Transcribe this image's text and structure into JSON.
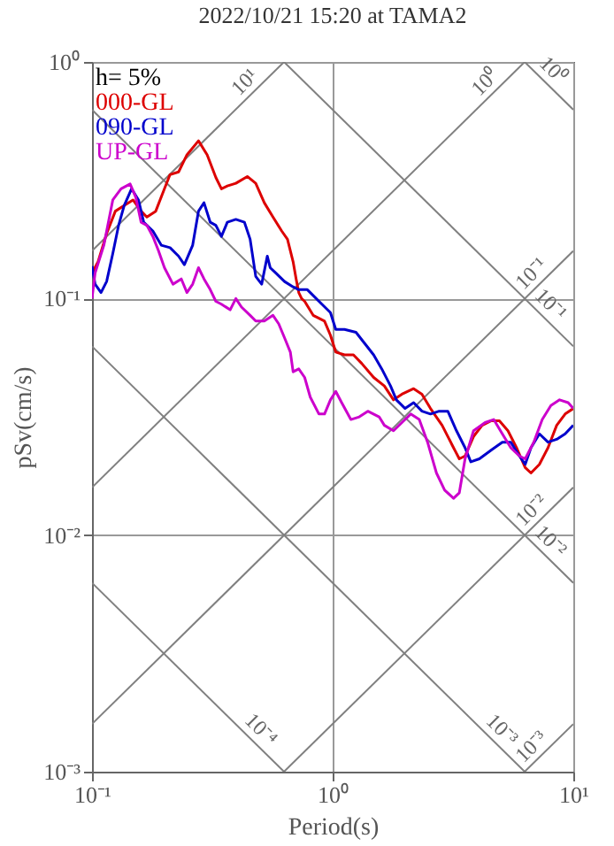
{
  "chart_data": {
    "type": "line",
    "title": "2022/10/21 15:20 at TAMA2",
    "xlabel": "Period(s)",
    "ylabel": "pSv(cm/s)",
    "legend_title": "h= 5%",
    "legend": "top left",
    "log": "xy",
    "grid": true,
    "xlim": [
      0.1,
      10
    ],
    "ylim": [
      0.001,
      1
    ],
    "xticks": [
      {
        "value": 0.1,
        "label": "10⁻¹"
      },
      {
        "value": 1,
        "label": "10⁰"
      },
      {
        "value": 10,
        "label": "10¹"
      }
    ],
    "yticks": [
      {
        "value": 0.001,
        "label": "10⁻³"
      },
      {
        "value": 0.01,
        "label": "10⁻²"
      },
      {
        "value": 0.1,
        "label": "10⁻¹"
      },
      {
        "value": 1,
        "label": "10⁰"
      }
    ],
    "series": [
      {
        "name": "000-GL",
        "color": "#dd0000",
        "x": [
          0.1,
          0.106,
          0.115,
          0.125,
          0.136,
          0.148,
          0.16,
          0.169,
          0.184,
          0.2,
          0.211,
          0.229,
          0.248,
          0.277,
          0.301,
          0.327,
          0.345,
          0.365,
          0.396,
          0.442,
          0.479,
          0.52,
          0.565,
          0.614,
          0.649,
          0.685,
          0.705,
          0.723,
          0.743,
          0.765,
          0.83,
          0.877,
          0.925,
          0.979,
          1.03,
          1.12,
          1.22,
          1.32,
          1.48,
          1.64,
          1.79,
          1.94,
          2.17,
          2.35,
          2.55,
          2.85,
          3.18,
          3.36,
          3.55,
          3.85,
          4.18,
          4.54,
          4.93,
          5.35,
          5.81,
          6.31,
          6.67,
          7.23,
          7.85,
          8.53,
          9.25,
          10
        ],
        "values": [
          0.128,
          0.143,
          0.188,
          0.234,
          0.247,
          0.261,
          0.234,
          0.221,
          0.234,
          0.291,
          0.334,
          0.343,
          0.405,
          0.464,
          0.405,
          0.325,
          0.291,
          0.299,
          0.307,
          0.328,
          0.307,
          0.254,
          0.221,
          0.193,
          0.178,
          0.143,
          0.121,
          0.106,
          0.1,
          0.0973,
          0.0849,
          0.0825,
          0.0803,
          0.07,
          0.0594,
          0.0578,
          0.0578,
          0.0532,
          0.0464,
          0.0427,
          0.0373,
          0.0394,
          0.0416,
          0.0394,
          0.0343,
          0.0291,
          0.0234,
          0.021,
          0.0216,
          0.0261,
          0.0291,
          0.0304,
          0.0304,
          0.0276,
          0.0234,
          0.0193,
          0.0183,
          0.0199,
          0.0234,
          0.0291,
          0.0325,
          0.0343
        ]
      },
      {
        "name": "090-GL",
        "color": "#0000cc",
        "x": [
          0.1,
          0.103,
          0.109,
          0.115,
          0.122,
          0.129,
          0.136,
          0.146,
          0.156,
          0.164,
          0.179,
          0.194,
          0.211,
          0.229,
          0.242,
          0.262,
          0.277,
          0.292,
          0.31,
          0.327,
          0.345,
          0.365,
          0.396,
          0.43,
          0.454,
          0.479,
          0.507,
          0.535,
          0.55,
          0.581,
          0.631,
          0.685,
          0.723,
          0.785,
          0.902,
          0.979,
          1.03,
          1.12,
          1.25,
          1.36,
          1.48,
          1.6,
          1.74,
          1.84,
          2.0,
          2.17,
          2.35,
          2.55,
          2.77,
          3.01,
          3.27,
          3.55,
          3.75,
          4.07,
          4.54,
          5.07,
          5.5,
          5.97,
          6.31,
          6.67,
          7.23,
          7.85,
          8.53,
          9.25,
          10
        ],
        "values": [
          0.137,
          0.115,
          0.106,
          0.118,
          0.155,
          0.204,
          0.247,
          0.291,
          0.261,
          0.21,
          0.193,
          0.168,
          0.164,
          0.151,
          0.139,
          0.168,
          0.234,
          0.254,
          0.21,
          0.204,
          0.183,
          0.21,
          0.216,
          0.21,
          0.178,
          0.124,
          0.115,
          0.151,
          0.135,
          0.128,
          0.118,
          0.112,
          0.109,
          0.109,
          0.0946,
          0.0872,
          0.074,
          0.074,
          0.072,
          0.0645,
          0.0578,
          0.0504,
          0.0427,
          0.0373,
          0.0343,
          0.0363,
          0.0334,
          0.0325,
          0.0334,
          0.0334,
          0.0276,
          0.0234,
          0.0204,
          0.021,
          0.0228,
          0.0247,
          0.0247,
          0.0216,
          0.0199,
          0.0234,
          0.0268,
          0.0247,
          0.0254,
          0.0268,
          0.0291
        ]
      },
      {
        "name": "UP-GL",
        "color": "#cc00cc",
        "x": [
          0.1,
          0.103,
          0.112,
          0.122,
          0.132,
          0.144,
          0.152,
          0.16,
          0.169,
          0.179,
          0.189,
          0.2,
          0.217,
          0.235,
          0.248,
          0.262,
          0.277,
          0.292,
          0.31,
          0.327,
          0.345,
          0.375,
          0.396,
          0.418,
          0.454,
          0.479,
          0.52,
          0.565,
          0.597,
          0.631,
          0.667,
          0.685,
          0.723,
          0.765,
          0.807,
          0.877,
          0.925,
          0.979,
          1.03,
          1.09,
          1.19,
          1.29,
          1.4,
          1.56,
          1.64,
          1.79,
          1.94,
          2.11,
          2.29,
          2.48,
          2.7,
          2.92,
          3.18,
          3.36,
          3.55,
          3.85,
          4.3,
          4.67,
          5.07,
          5.5,
          5.97,
          6.31,
          6.85,
          7.43,
          8.07,
          8.77,
          9.52,
          10
        ],
        "values": [
          0.1,
          0.128,
          0.168,
          0.261,
          0.291,
          0.305,
          0.268,
          0.21,
          0.204,
          0.183,
          0.159,
          0.135,
          0.115,
          0.121,
          0.106,
          0.115,
          0.135,
          0.121,
          0.109,
          0.0973,
          0.0946,
          0.0896,
          0.1,
          0.092,
          0.0849,
          0.0803,
          0.0803,
          0.0849,
          0.0781,
          0.0682,
          0.0594,
          0.049,
          0.0504,
          0.0464,
          0.0383,
          0.0325,
          0.0325,
          0.0373,
          0.0405,
          0.0363,
          0.0308,
          0.0316,
          0.0334,
          0.0316,
          0.0291,
          0.0276,
          0.0299,
          0.0325,
          0.0308,
          0.0247,
          0.0183,
          0.0155,
          0.0143,
          0.0151,
          0.021,
          0.0276,
          0.0299,
          0.0308,
          0.0268,
          0.0234,
          0.0216,
          0.021,
          0.0247,
          0.0308,
          0.0353,
          0.0373,
          0.0363,
          0.0343
        ]
      },
      {
        "color": "#808080",
        "x": [
          0.1,
          0.628
        ],
        "values": [
          0.00628,
          0.001
        ]
      },
      {
        "color": "#808080",
        "x": [
          0.1,
          6.28
        ],
        "values": [
          0.0628,
          0.001
        ]
      },
      {
        "color": "#808080",
        "x": [
          0.1,
          10
        ],
        "values": [
          0.628,
          0.00628
        ]
      },
      {
        "color": "#808080",
        "x": [
          0.628,
          10
        ],
        "values": [
          1,
          0.0628
        ]
      },
      {
        "color": "#808080",
        "x": [
          6.28,
          10
        ],
        "values": [
          1,
          0.628
        ]
      },
      {
        "color": "#808080",
        "x": [
          0.1,
          0.628
        ],
        "values": [
          0.159,
          1
        ]
      },
      {
        "color": "#808080",
        "x": [
          0.1,
          6.28
        ],
        "values": [
          0.0159,
          1
        ]
      },
      {
        "color": "#808080",
        "x": [
          0.1,
          10
        ],
        "values": [
          0.00159,
          0.159
        ]
      },
      {
        "color": "#808080",
        "x": [
          0.628,
          10
        ],
        "values": [
          0.001,
          0.0159
        ]
      },
      {
        "color": "#808080",
        "x": [
          6.28,
          10
        ],
        "values": [
          0.001,
          0.00159
        ]
      }
    ],
    "annotations": [
      {
        "text": "10⁻⁴",
        "x": 0.628,
        "y": 0.001
      },
      {
        "text": "10⁻³",
        "x": 6.28,
        "y": 0.001
      },
      {
        "text": "10⁻²",
        "x": 10,
        "y": 0.00628
      },
      {
        "text": "10⁻¹",
        "x": 10,
        "y": 0.0628
      },
      {
        "text": "10⁰",
        "x": 10,
        "y": 0.628
      },
      {
        "text": "10¹",
        "x": 0.628,
        "y": 1
      },
      {
        "text": "10⁰",
        "x": 6.28,
        "y": 1
      },
      {
        "text": "10⁻¹",
        "x": 10,
        "y": 0.159
      },
      {
        "text": "10⁻²",
        "x": 10,
        "y": 0.0159
      },
      {
        "text": "10⁻³",
        "x": 10,
        "y": 0.00159
      }
    ]
  }
}
